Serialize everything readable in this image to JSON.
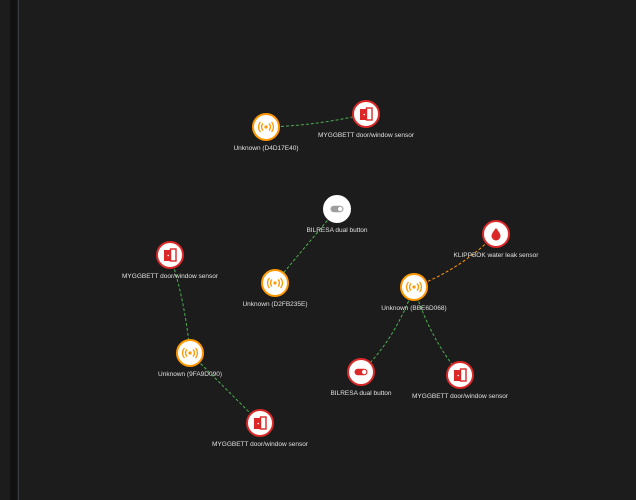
{
  "colors": {
    "background": "#1c1c1c",
    "router": "#ff9800",
    "end_device": "#db2828",
    "button_idle": "#ffffff",
    "edge_good": "#4caf50",
    "edge_medium": "#ff9800"
  },
  "nodes": [
    {
      "id": "A",
      "label": "Unknown (D4D17E40)",
      "kind": "router",
      "icon": "radio-waves-icon"
    },
    {
      "id": "B",
      "label": "MYGGBETT door/window sensor",
      "kind": "end_device",
      "icon": "door-window-icon"
    },
    {
      "id": "C",
      "label": "BILRESA dual button",
      "kind": "button_idle",
      "icon": "toggle-icon"
    },
    {
      "id": "D",
      "label": "Unknown (D2FB235E)",
      "kind": "router",
      "icon": "radio-waves-icon"
    },
    {
      "id": "E",
      "label": "MYGGBETT door/window sensor",
      "kind": "end_device",
      "icon": "door-window-icon"
    },
    {
      "id": "F",
      "label": "Unknown (9FA9D090)",
      "kind": "router",
      "icon": "radio-waves-icon"
    },
    {
      "id": "G",
      "label": "MYGGBETT door/window sensor",
      "kind": "end_device",
      "icon": "door-window-icon"
    },
    {
      "id": "H",
      "label": "KLIPPBOK water leak sensor",
      "kind": "end_device",
      "icon": "water-drop-icon"
    },
    {
      "id": "I",
      "label": "Unknown (BBE6D068)",
      "kind": "router",
      "icon": "radio-waves-icon"
    },
    {
      "id": "J",
      "label": "BILRESA dual button",
      "kind": "end_device",
      "icon": "toggle-icon"
    },
    {
      "id": "K",
      "label": "MYGGBETT door/window sensor",
      "kind": "end_device",
      "icon": "door-window-icon"
    }
  ],
  "edges": [
    {
      "from": "A",
      "to": "B",
      "quality": "edge_good"
    },
    {
      "from": "C",
      "to": "D",
      "quality": "edge_good"
    },
    {
      "from": "E",
      "to": "F",
      "quality": "edge_good"
    },
    {
      "from": "F",
      "to": "G",
      "quality": "edge_good"
    },
    {
      "from": "I",
      "to": "H",
      "quality": "edge_medium"
    },
    {
      "from": "I",
      "to": "J",
      "quality": "edge_good"
    },
    {
      "from": "I",
      "to": "K",
      "quality": "edge_good"
    }
  ]
}
